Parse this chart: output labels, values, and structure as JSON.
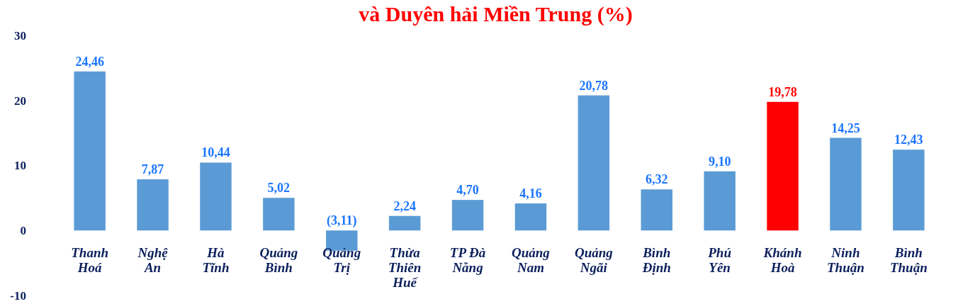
{
  "chart_data": {
    "type": "bar",
    "title": "và Duyên hải Miền Trung (%)",
    "categories": [
      "Thanh\nHoá",
      "Nghệ\nAn",
      "Hà\nTĩnh",
      "Quảng\nBình",
      "Quảng\nTrị",
      "Thừa\nThiên\nHuế",
      "TP Đà\nNẵng",
      "Quảng\nNam",
      "Quảng\nNgãi",
      "Bình\nĐịnh",
      "Phú\nYên",
      "Khánh\nHoà",
      "Ninh\nThuận",
      "Bình\nThuận"
    ],
    "values": [
      24.46,
      7.87,
      10.44,
      5.02,
      -3.11,
      2.24,
      4.7,
      4.16,
      20.78,
      6.32,
      9.1,
      19.78,
      14.25,
      12.43
    ],
    "colors": [
      "#5b9bd5",
      "#5b9bd5",
      "#5b9bd5",
      "#5b9bd5",
      "#5b9bd5",
      "#5b9bd5",
      "#5b9bd5",
      "#5b9bd5",
      "#5b9bd5",
      "#5b9bd5",
      "#5b9bd5",
      "#ff0000",
      "#5b9bd5",
      "#5b9bd5"
    ],
    "value_labels": [
      "24,46",
      "7,87",
      "10,44",
      "5,02",
      "(3,11)",
      "2,24",
      "4,70",
      "4,16",
      "20,78",
      "6,32",
      "9,10",
      "19,78",
      "14,25",
      "12,43"
    ],
    "ylim": [
      -10,
      30
    ],
    "yticks": [
      -10,
      0,
      10,
      20,
      30
    ]
  }
}
